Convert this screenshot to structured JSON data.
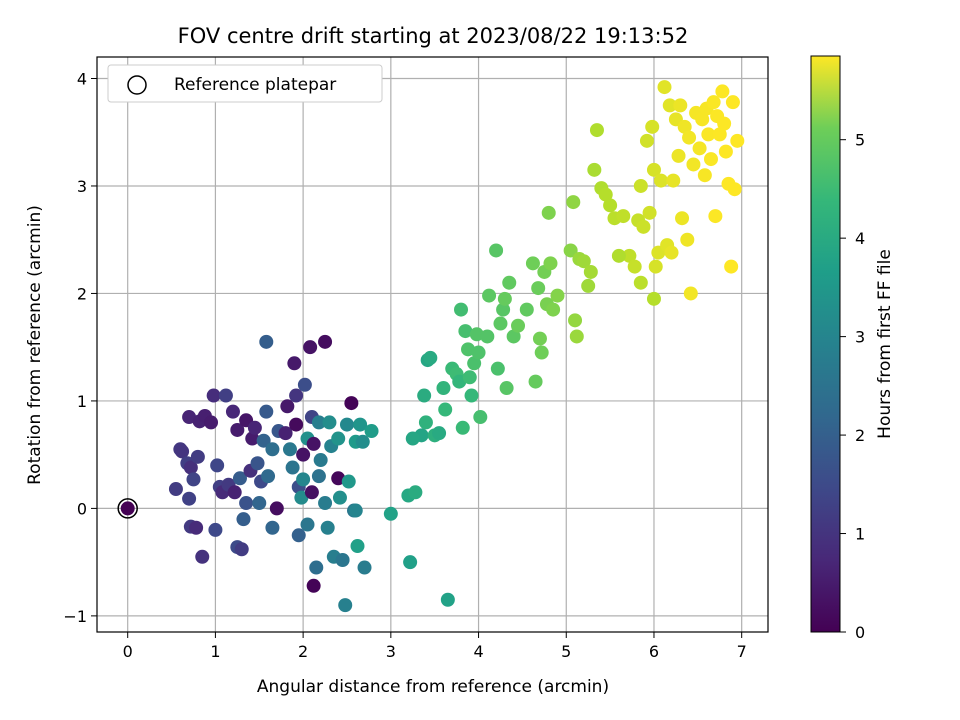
{
  "chart_data": {
    "type": "scatter",
    "title": "FOV centre drift starting at 2023/08/22 19:13:52",
    "xlabel": "Angular distance from reference (arcmin)",
    "ylabel": "Rotation from reference (arcmin)",
    "xlim": [
      -0.35,
      7.3
    ],
    "ylim": [
      -1.15,
      4.2
    ],
    "xticks": [
      0,
      1,
      2,
      3,
      4,
      5,
      6,
      7
    ],
    "yticks": [
      -1,
      0,
      1,
      2,
      3,
      4
    ],
    "grid": true,
    "legend": {
      "placement": "upper-left",
      "entries": [
        "Reference platepar"
      ]
    },
    "reference_point": {
      "x": 0,
      "y": 0
    },
    "colorbar": {
      "label": "Hours from first FF file",
      "colormap": "viridis",
      "range": [
        0,
        5.85
      ],
      "ticks": [
        0,
        1,
        2,
        3,
        4,
        5
      ]
    },
    "points": [
      [
        0.55,
        0.18,
        1.05
      ],
      [
        0.6,
        0.55,
        0.95
      ],
      [
        0.62,
        0.53,
        0.9
      ],
      [
        0.68,
        0.42,
        1.1
      ],
      [
        0.7,
        0.85,
        0.6
      ],
      [
        0.7,
        0.09,
        1.15
      ],
      [
        0.72,
        0.38,
        0.8
      ],
      [
        0.72,
        -0.17,
        1.0
      ],
      [
        0.75,
        0.27,
        1.2
      ],
      [
        0.78,
        -0.18,
        0.7
      ],
      [
        0.8,
        0.48,
        1.05
      ],
      [
        0.82,
        0.81,
        0.55
      ],
      [
        0.85,
        -0.45,
        0.85
      ],
      [
        0.88,
        0.86,
        0.5
      ],
      [
        0.95,
        0.8,
        0.45
      ],
      [
        0.98,
        1.05,
        0.75
      ],
      [
        1.0,
        -0.2,
        1.3
      ],
      [
        1.02,
        0.4,
        1.25
      ],
      [
        1.05,
        0.2,
        1.1
      ],
      [
        1.08,
        0.15,
        0.7
      ],
      [
        1.12,
        1.05,
        1.1
      ],
      [
        1.15,
        0.22,
        1.0
      ],
      [
        1.2,
        0.9,
        0.65
      ],
      [
        1.22,
        0.15,
        0.55
      ],
      [
        1.25,
        0.73,
        0.45
      ],
      [
        1.25,
        -0.36,
        1.35
      ],
      [
        1.28,
        0.28,
        1.7
      ],
      [
        1.3,
        -0.38,
        1.05
      ],
      [
        1.32,
        -0.1,
        1.75
      ],
      [
        1.35,
        0.82,
        0.35
      ],
      [
        1.35,
        0.05,
        1.5
      ],
      [
        1.4,
        0.35,
        0.8
      ],
      [
        1.42,
        0.65,
        0.45
      ],
      [
        1.45,
        0.75,
        0.6
      ],
      [
        1.48,
        0.42,
        1.55
      ],
      [
        1.5,
        0.05,
        1.9
      ],
      [
        1.52,
        0.25,
        1.3
      ],
      [
        1.55,
        0.63,
        1.85
      ],
      [
        1.58,
        0.9,
        1.65
      ],
      [
        1.58,
        1.55,
        1.75
      ],
      [
        1.6,
        0.3,
        2.0
      ],
      [
        1.65,
        0.55,
        2.1
      ],
      [
        1.65,
        -0.18,
        1.9
      ],
      [
        1.7,
        0.0,
        0.2
      ],
      [
        1.72,
        0.72,
        1.6
      ],
      [
        1.8,
        0.7,
        0.55
      ],
      [
        1.82,
        0.95,
        0.4
      ],
      [
        1.85,
        0.55,
        2.35
      ],
      [
        1.88,
        0.38,
        2.25
      ],
      [
        1.9,
        1.35,
        0.4
      ],
      [
        1.92,
        1.05,
        0.9
      ],
      [
        1.92,
        0.78,
        0.15
      ],
      [
        1.95,
        0.2,
        1.4
      ],
      [
        1.95,
        -0.25,
        1.8
      ],
      [
        1.98,
        0.1,
        2.8
      ],
      [
        2.0,
        0.5,
        0.3
      ],
      [
        2.0,
        0.27,
        2.7
      ],
      [
        2.02,
        1.15,
        1.4
      ],
      [
        2.05,
        0.65,
        2.95
      ],
      [
        2.05,
        -0.15,
        2.3
      ],
      [
        2.08,
        1.5,
        0.3
      ],
      [
        2.1,
        0.85,
        1.2
      ],
      [
        2.1,
        0.15,
        0.25
      ],
      [
        2.12,
        0.6,
        0.3
      ],
      [
        2.12,
        -0.72,
        0.05
      ],
      [
        2.15,
        -0.55,
        2.1
      ],
      [
        2.18,
        0.3,
        2.2
      ],
      [
        2.18,
        0.8,
        2.5
      ],
      [
        2.2,
        0.45,
        2.4
      ],
      [
        2.25,
        1.55,
        0.2
      ],
      [
        2.25,
        0.05,
        2.45
      ],
      [
        2.28,
        -0.18,
        2.55
      ],
      [
        2.3,
        0.8,
        2.85
      ],
      [
        2.32,
        0.58,
        2.6
      ],
      [
        2.35,
        -0.45,
        2.5
      ],
      [
        2.4,
        0.65,
        3.0
      ],
      [
        2.4,
        0.28,
        0.1
      ],
      [
        2.42,
        0.1,
        2.9
      ],
      [
        2.45,
        -0.48,
        2.3
      ],
      [
        2.48,
        -0.9,
        2.55
      ],
      [
        2.5,
        0.78,
        2.75
      ],
      [
        2.52,
        0.25,
        3.1
      ],
      [
        2.55,
        0.98,
        0.05
      ],
      [
        2.58,
        -0.02,
        2.3
      ],
      [
        2.6,
        0.62,
        3.15
      ],
      [
        2.62,
        -0.35,
        3.3
      ],
      [
        2.65,
        0.78,
        3.05
      ],
      [
        2.68,
        0.62,
        2.85
      ],
      [
        2.7,
        -0.55,
        2.45
      ],
      [
        2.78,
        0.72,
        3.2
      ],
      [
        3.0,
        -0.05,
        3.35
      ],
      [
        3.2,
        0.12,
        3.5
      ],
      [
        3.22,
        -0.5,
        3.3
      ],
      [
        3.28,
        0.15,
        3.6
      ],
      [
        3.35,
        0.68,
        3.4
      ],
      [
        3.38,
        1.05,
        3.6
      ],
      [
        3.4,
        0.8,
        3.75
      ],
      [
        3.42,
        1.38,
        3.45
      ],
      [
        3.45,
        1.4,
        3.55
      ],
      [
        3.5,
        0.68,
        3.7
      ],
      [
        3.55,
        0.7,
        3.55
      ],
      [
        3.6,
        1.12,
        3.8
      ],
      [
        3.62,
        0.92,
        3.9
      ],
      [
        3.65,
        -0.85,
        3.35
      ],
      [
        3.7,
        1.3,
        3.95
      ],
      [
        3.75,
        1.25,
        4.0
      ],
      [
        3.78,
        1.18,
        3.85
      ],
      [
        3.8,
        1.85,
        4.05
      ],
      [
        3.82,
        0.75,
        3.95
      ],
      [
        3.85,
        1.65,
        4.1
      ],
      [
        3.88,
        1.48,
        4.2
      ],
      [
        3.9,
        1.22,
        4.0
      ],
      [
        3.92,
        1.05,
        3.9
      ],
      [
        3.95,
        1.35,
        4.15
      ],
      [
        3.98,
        1.62,
        4.25
      ],
      [
        4.0,
        1.45,
        4.2
      ],
      [
        4.02,
        0.85,
        4.1
      ],
      [
        4.1,
        1.6,
        4.25
      ],
      [
        4.12,
        1.98,
        4.35
      ],
      [
        4.2,
        2.4,
        4.3
      ],
      [
        4.22,
        1.3,
        4.15
      ],
      [
        4.25,
        1.72,
        4.35
      ],
      [
        4.28,
        1.85,
        4.3
      ],
      [
        4.3,
        1.95,
        4.45
      ],
      [
        4.32,
        1.12,
        4.3
      ],
      [
        4.35,
        2.1,
        4.4
      ],
      [
        4.4,
        1.6,
        4.35
      ],
      [
        4.45,
        1.7,
        4.5
      ],
      [
        4.55,
        1.85,
        4.4
      ],
      [
        4.62,
        2.28,
        4.55
      ],
      [
        4.65,
        1.18,
        4.45
      ],
      [
        4.68,
        2.05,
        4.5
      ],
      [
        4.7,
        1.58,
        4.6
      ],
      [
        4.72,
        1.45,
        4.55
      ],
      [
        4.75,
        2.2,
        4.6
      ],
      [
        4.78,
        1.9,
        4.65
      ],
      [
        4.8,
        2.75,
        4.7
      ],
      [
        4.82,
        2.28,
        4.7
      ],
      [
        4.85,
        1.85,
        4.7
      ],
      [
        4.9,
        1.98,
        4.75
      ],
      [
        5.05,
        2.4,
        4.8
      ],
      [
        5.08,
        2.85,
        4.85
      ],
      [
        5.1,
        1.75,
        4.9
      ],
      [
        5.12,
        1.6,
        4.95
      ],
      [
        5.15,
        2.32,
        4.95
      ],
      [
        5.2,
        2.3,
        5.0
      ],
      [
        5.25,
        2.07,
        5.0
      ],
      [
        5.28,
        2.2,
        5.05
      ],
      [
        5.32,
        3.15,
        5.1
      ],
      [
        5.35,
        3.52,
        5.15
      ],
      [
        5.4,
        2.98,
        5.15
      ],
      [
        5.45,
        2.92,
        5.2
      ],
      [
        5.5,
        2.82,
        5.2
      ],
      [
        5.55,
        2.7,
        5.25
      ],
      [
        5.65,
        2.72,
        5.3
      ],
      [
        5.72,
        2.35,
        5.3
      ],
      [
        5.78,
        2.25,
        5.35
      ],
      [
        5.82,
        2.68,
        5.35
      ],
      [
        5.85,
        3.0,
        5.4
      ],
      [
        5.88,
        2.62,
        5.4
      ],
      [
        5.92,
        3.42,
        5.45
      ],
      [
        5.95,
        2.75,
        5.45
      ],
      [
        5.98,
        3.55,
        5.5
      ],
      [
        6.0,
        3.15,
        5.5
      ],
      [
        6.02,
        2.25,
        5.5
      ],
      [
        6.05,
        2.38,
        5.55
      ],
      [
        6.08,
        3.05,
        5.55
      ],
      [
        6.12,
        3.92,
        5.6
      ],
      [
        6.15,
        2.45,
        5.6
      ],
      [
        6.18,
        3.75,
        5.6
      ],
      [
        6.2,
        2.38,
        5.65
      ],
      [
        6.22,
        3.05,
        5.65
      ],
      [
        6.25,
        3.62,
        5.65
      ],
      [
        6.28,
        3.28,
        5.7
      ],
      [
        6.3,
        3.75,
        5.7
      ],
      [
        6.32,
        2.7,
        5.7
      ],
      [
        6.35,
        3.55,
        5.72
      ],
      [
        6.38,
        2.5,
        5.72
      ],
      [
        6.4,
        3.45,
        5.75
      ],
      [
        6.42,
        2.0,
        5.75
      ],
      [
        6.45,
        3.2,
        5.75
      ],
      [
        6.48,
        3.68,
        5.78
      ],
      [
        6.52,
        3.35,
        5.78
      ],
      [
        6.55,
        3.62,
        5.8
      ],
      [
        6.58,
        3.1,
        5.8
      ],
      [
        6.6,
        3.72,
        5.8
      ],
      [
        6.62,
        3.48,
        5.82
      ],
      [
        6.65,
        3.25,
        5.82
      ],
      [
        6.68,
        3.78,
        5.82
      ],
      [
        6.7,
        2.72,
        5.83
      ],
      [
        6.72,
        3.65,
        5.83
      ],
      [
        6.75,
        3.48,
        5.84
      ],
      [
        6.78,
        3.88,
        5.84
      ],
      [
        6.8,
        3.58,
        5.84
      ],
      [
        6.82,
        3.32,
        5.85
      ],
      [
        6.85,
        3.02,
        5.85
      ],
      [
        6.88,
        2.25,
        5.85
      ],
      [
        6.9,
        3.78,
        5.85
      ],
      [
        6.92,
        2.97,
        5.85
      ],
      [
        6.95,
        3.42,
        5.85
      ],
      [
        6.0,
        1.95,
        5.2
      ],
      [
        5.6,
        2.35,
        5.15
      ],
      [
        5.85,
        2.1,
        5.25
      ],
      [
        2.6,
        -0.02,
        2.65
      ],
      [
        3.25,
        0.65,
        3.45
      ]
    ]
  }
}
